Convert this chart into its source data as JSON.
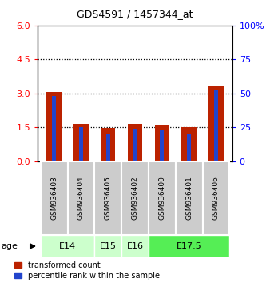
{
  "title": "GDS4591 / 1457344_at",
  "samples": [
    "GSM936403",
    "GSM936404",
    "GSM936405",
    "GSM936402",
    "GSM936400",
    "GSM936401",
    "GSM936406"
  ],
  "transformed_counts": [
    3.05,
    1.65,
    1.48,
    1.65,
    1.6,
    1.5,
    3.3
  ],
  "percentile_ranks_pct": [
    48,
    25,
    20,
    24,
    23,
    20,
    52
  ],
  "age_group_spans": [
    {
      "label": "E14",
      "start": 0,
      "end": 2,
      "color": "#ccffcc"
    },
    {
      "label": "E15",
      "start": 2,
      "end": 3,
      "color": "#ccffcc"
    },
    {
      "label": "E16",
      "start": 3,
      "end": 4,
      "color": "#ccffcc"
    },
    {
      "label": "E17.5",
      "start": 4,
      "end": 7,
      "color": "#55ee55"
    }
  ],
  "ylim_left": [
    0,
    6
  ],
  "yticks_left": [
    0,
    1.5,
    3.0,
    4.5,
    6
  ],
  "yticks_right_pct": [
    0,
    25,
    50,
    75,
    100
  ],
  "bar_color": "#bb2200",
  "percentile_color": "#2244cc",
  "sample_box_color": "#cccccc",
  "legend_bar_label": "transformed count",
  "legend_pct_label": "percentile rank within the sample",
  "age_label": "age"
}
